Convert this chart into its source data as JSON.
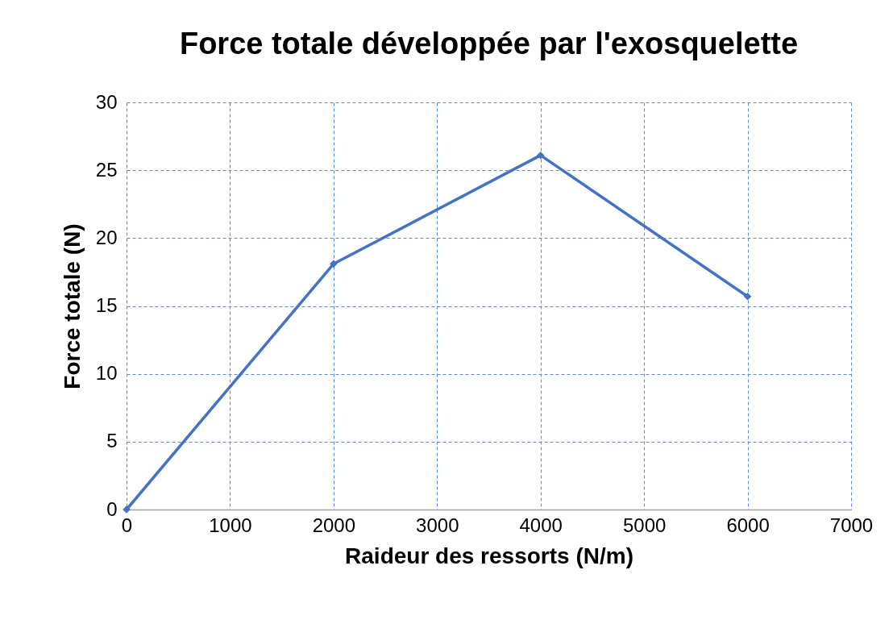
{
  "chart_data": {
    "type": "line",
    "title": "Force totale développée par l'exosquelette",
    "xlabel": "Raideur des ressorts (N/m)",
    "ylabel": "Force totale (N)",
    "x": [
      0,
      2000,
      4000,
      6000
    ],
    "series": [
      {
        "color": "#4472c4",
        "values": [
          0,
          18.1,
          26.1,
          15.7
        ]
      }
    ],
    "xlim": [
      0,
      7000
    ],
    "xticks": [
      0,
      1000,
      2000,
      3000,
      4000,
      5000,
      6000,
      7000
    ],
    "ylim": [
      0,
      30
    ],
    "yticks": [
      0,
      5,
      10,
      15,
      20,
      25,
      30
    ],
    "grid": true,
    "marker": "diamond",
    "line_style": "solid"
  }
}
